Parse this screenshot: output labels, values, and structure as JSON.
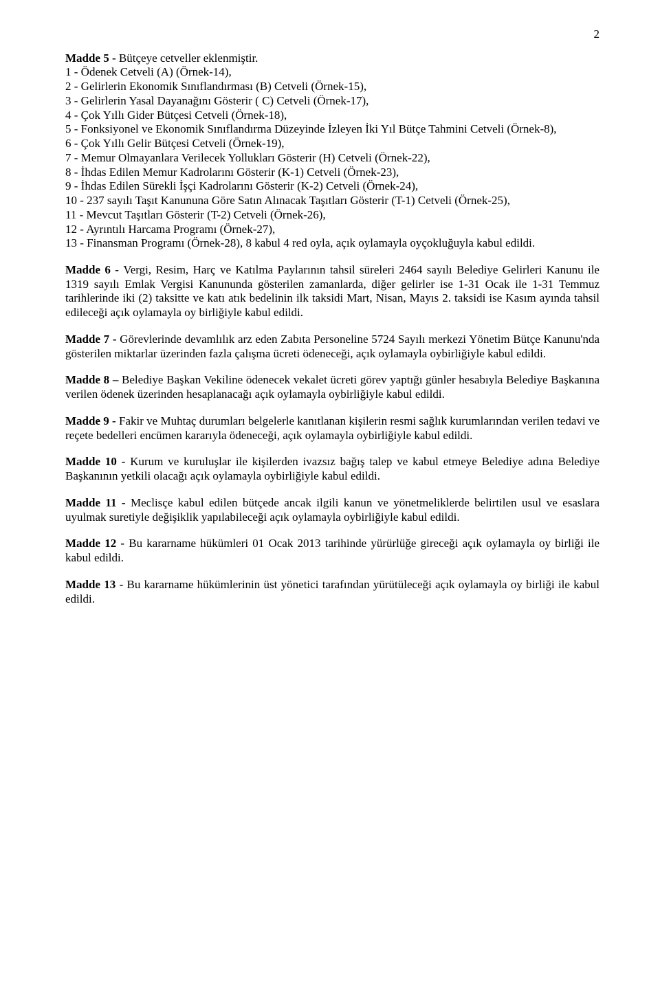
{
  "page_number": "2",
  "madde5": {
    "title": "Madde 5",
    "dash": " - ",
    "intro": "Bütçeye cetveller eklenmiştir.",
    "items": [
      "1 - Ödenek Cetveli (A) (Örnek-14),",
      "2 - Gelirlerin Ekonomik Sınıflandırması (B) Cetveli (Örnek-15),",
      "3 - Gelirlerin Yasal Dayanağını Gösterir ( C) Cetveli (Örnek-17),",
      "4 - Çok Yıllı Gider Bütçesi Cetveli (Örnek-18),",
      "5 - Fonksiyonel ve Ekonomik Sınıflandırma Düzeyinde İzleyen İki Yıl Bütçe Tahmini Cetveli (Örnek-8),",
      "6 - Çok Yıllı Gelir Bütçesi Cetveli (Örnek-19),",
      "7 - Memur Olmayanlara Verilecek Yollukları Gösterir (H) Cetveli (Örnek-22),",
      "8 - İhdas Edilen Memur Kadrolarını Gösterir (K-1) Cetveli (Örnek-23),",
      "9 - İhdas Edilen Sürekli İşçi Kadrolarını Gösterir (K-2) Cetveli (Örnek-24),",
      "10 - 237 sayılı Taşıt Kanununa Göre Satın Alınacak Taşıtları Gösterir (T-1) Cetveli (Örnek-25),",
      "11 - Mevcut Taşıtları Gösterir (T-2) Cetveli (Örnek-26),",
      "12 - Ayrıntılı Harcama Programı (Örnek-27),",
      "13 - Finansman Programı (Örnek-28), 8 kabul 4 red oyla,  açık oylamayla oyçokluğuyla kabul edildi."
    ]
  },
  "madde6": {
    "title": "Madde 6",
    "dash": " - ",
    "text": "Vergi, Resim, Harç ve Katılma Paylarının tahsil süreleri 2464 sayılı Belediye Gelirleri Kanunu ile 1319 sayılı Emlak Vergisi Kanununda gösterilen zamanlarda, diğer gelirler ise 1-31 Ocak ile 1-31 Temmuz tarihlerinde iki (2) taksitte ve katı atık bedelinin ilk taksidi Mart, Nisan, Mayıs 2. taksidi ise Kasım ayında  tahsil edileceği açık oylamayla oy birliğiyle kabul edildi."
  },
  "madde7": {
    "title": "Madde 7",
    "dash": "  - ",
    "text": "Görevlerinde devamlılık arz eden Zabıta Personeline 5724 Sayılı merkezi Yönetim Bütçe Kanunu'nda gösterilen miktarlar üzerinden fazla çalışma ücreti ödeneceği, açık oylamayla oybirliğiyle kabul edildi."
  },
  "madde8": {
    "title": "Madde 8",
    "dash": " – ",
    "text": "  Belediye Başkan Vekiline ödenecek vekalet ücreti görev yaptığı günler hesabıyla Belediye Başkanına verilen ödenek üzerinden hesaplanacağı açık oylamayla oybirliğiyle kabul edildi."
  },
  "madde9": {
    "title": "Madde 9",
    "dash": " - ",
    "text": "Fakir ve Muhtaç durumları belgelerle kanıtlanan kişilerin resmi sağlık kurumlarından verilen tedavi ve reçete bedelleri encümen kararıyla ödeneceği,  açık oylamayla oybirliğiyle kabul edildi."
  },
  "madde10": {
    "title": "Madde 10",
    "dash": "  - ",
    "text": "Kurum ve kuruluşlar ile kişilerden ivazsız bağış talep ve kabul etmeye Belediye adına Belediye Başkanının yetkili olacağı açık oylamayla oybirliğiyle kabul edildi."
  },
  "madde11": {
    "title": "Madde 11",
    "dash": " -  ",
    "text": "Meclisçe kabul edilen bütçede ancak ilgili kanun ve yönetmeliklerde belirtilen usul ve esaslara uyulmak suretiyle değişiklik yapılabileceği açık oylamayla oybirliğiyle kabul edildi."
  },
  "madde12": {
    "title": "Madde 12",
    "dash": " - ",
    "text": "Bu kararname hükümleri 01 Ocak 2013 tarihinde yürürlüğe gireceği açık oylamayla oy birliği ile kabul edildi."
  },
  "madde13": {
    "title": "Madde 13",
    "dash": " -   ",
    "text": "Bu kararname hükümlerinin  üst yönetici tarafından yürütüleceği açık oylamayla oy birliği ile kabul edildi."
  }
}
